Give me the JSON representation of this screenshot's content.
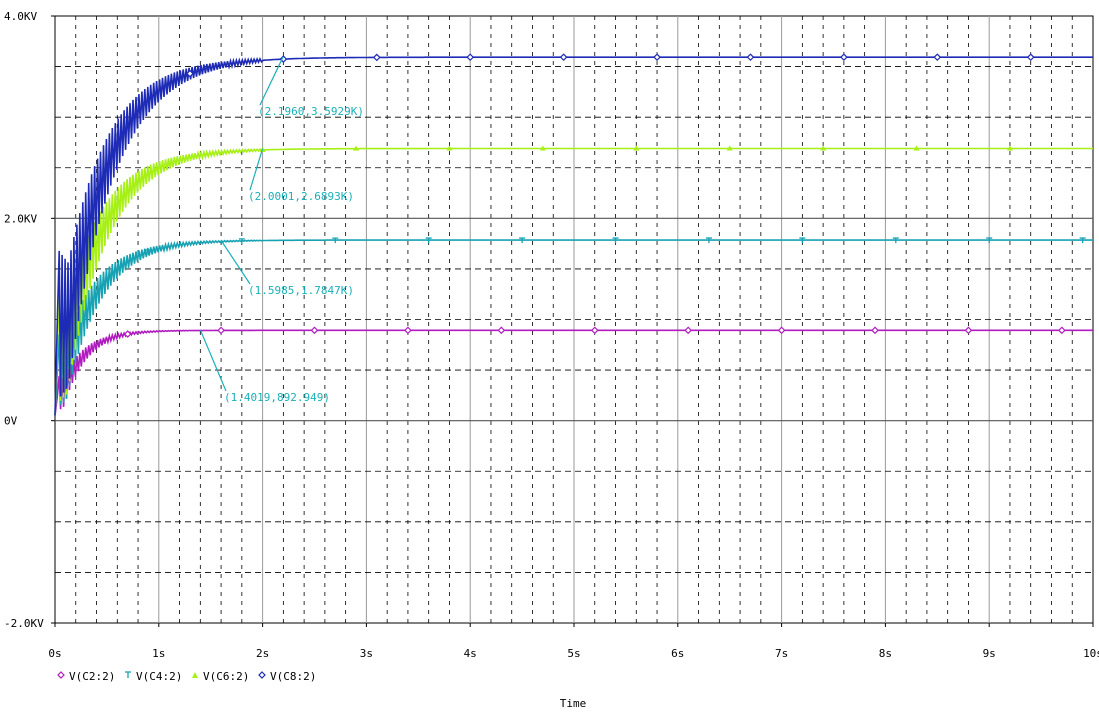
{
  "chart_data": {
    "type": "line",
    "xlabel": "Time",
    "ylabel": "",
    "xlim": [
      0,
      10
    ],
    "ylim": [
      -2000,
      4000
    ],
    "x_ticks": [
      {
        "value": 0,
        "label": "0s"
      },
      {
        "value": 1,
        "label": "1s"
      },
      {
        "value": 2,
        "label": "2s"
      },
      {
        "value": 3,
        "label": "3s"
      },
      {
        "value": 4,
        "label": "4s"
      },
      {
        "value": 5,
        "label": "5s"
      },
      {
        "value": 6,
        "label": "6s"
      },
      {
        "value": 7,
        "label": "7s"
      },
      {
        "value": 8,
        "label": "8s"
      },
      {
        "value": 9,
        "label": "9s"
      },
      {
        "value": 10,
        "label": "10s"
      }
    ],
    "y_ticks": [
      {
        "value": 4000,
        "label": "4.0KV"
      },
      {
        "value": 2000,
        "label": "2.0KV"
      },
      {
        "value": 0,
        "label": "0V"
      },
      {
        "value": -2000,
        "label": "-2.0KV"
      }
    ],
    "grid": true,
    "legend_position": "bottom-left",
    "series": [
      {
        "name": "V(C2:2)",
        "color": "#b01cc0",
        "marker": "diamond",
        "final": 893,
        "tau": 0.22,
        "start": 50
      },
      {
        "name": "V(C4:2)",
        "color": "#17a2b3",
        "marker": "tee",
        "final": 1785,
        "tau": 0.33,
        "start": 50
      },
      {
        "name": "V(C6:2)",
        "color": "#a6f016",
        "marker": "triangle",
        "final": 2690,
        "tau": 0.38,
        "start": 50
      },
      {
        "name": "V(C8:2)",
        "color": "#1d2bb6",
        "marker": "diamond",
        "final": 3593,
        "tau": 0.42,
        "start": 50
      }
    ],
    "annotations": [
      {
        "text": "(2.1960,3.5929K)",
        "x": 2.196,
        "y": 3592.9,
        "color": "#1ab0b8"
      },
      {
        "text": "(2.0001,2.6893K)",
        "x": 2.0001,
        "y": 2689.3,
        "color": "#1ab0b8"
      },
      {
        "text": "(1.5985,1.7847K)",
        "x": 1.5985,
        "y": 1784.7,
        "color": "#1ab0b8"
      },
      {
        "text": "(1.4019,892.949)",
        "x": 1.4019,
        "y": 892.949,
        "color": "#1ab0b8"
      }
    ]
  }
}
